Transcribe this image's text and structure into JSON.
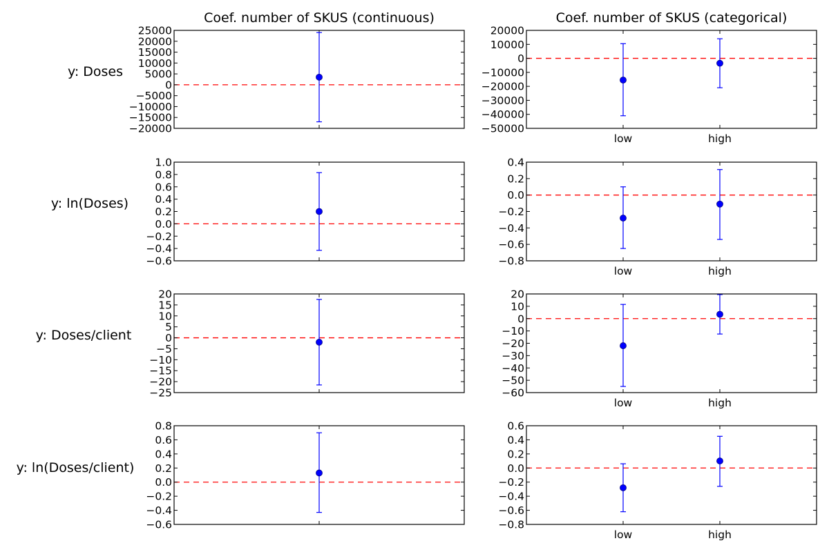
{
  "figure": {
    "column_titles": [
      "Coef. number of SKUS (continuous)",
      "Coef. number of SKUS (categorical)"
    ],
    "row_labels": [
      "y: Doses",
      "y: ln(Doses)",
      "y: Doses/client",
      "y: ln(Doses/client)"
    ],
    "colors": {
      "point": "#0000ff",
      "errorbar": "#0000ff",
      "reference_line": "#ff0000"
    }
  },
  "chart_data": [
    {
      "type": "errorbar",
      "title": "Coef. number of SKUS (continuous)",
      "ylabel": "y: Doses",
      "ylim": [
        -20000,
        25000
      ],
      "yticks": [
        -20000,
        -15000,
        -10000,
        -5000,
        0,
        5000,
        10000,
        15000,
        20000,
        25000
      ],
      "xticks": [],
      "reference_line": 0,
      "points": [
        {
          "x": "",
          "y": 3500,
          "lower": -17000,
          "upper": 24000
        }
      ]
    },
    {
      "type": "errorbar",
      "title": "Coef. number of SKUS (categorical)",
      "ylabel": "y: Doses",
      "ylim": [
        -50000,
        20000
      ],
      "yticks": [
        -50000,
        -40000,
        -30000,
        -20000,
        -10000,
        0,
        10000,
        20000
      ],
      "xticks": [
        "low",
        "high"
      ],
      "reference_line": 0,
      "points": [
        {
          "x": "low",
          "y": -15500,
          "lower": -41000,
          "upper": 10500
        },
        {
          "x": "high",
          "y": -3500,
          "lower": -21000,
          "upper": 14000
        }
      ]
    },
    {
      "type": "errorbar",
      "title": "Coef. number of SKUS (continuous)",
      "ylabel": "y: ln(Doses)",
      "ylim": [
        -0.6,
        1.0
      ],
      "yticks": [
        -0.6,
        -0.4,
        -0.2,
        0.0,
        0.2,
        0.4,
        0.6,
        0.8,
        1.0
      ],
      "xticks": [],
      "reference_line": 0,
      "points": [
        {
          "x": "",
          "y": 0.2,
          "lower": -0.43,
          "upper": 0.83
        }
      ]
    },
    {
      "type": "errorbar",
      "title": "Coef. number of SKUS (categorical)",
      "ylabel": "y: ln(Doses)",
      "ylim": [
        -0.8,
        0.4
      ],
      "yticks": [
        -0.8,
        -0.6,
        -0.4,
        -0.2,
        0.0,
        0.2,
        0.4
      ],
      "xticks": [
        "low",
        "high"
      ],
      "reference_line": 0,
      "points": [
        {
          "x": "low",
          "y": -0.28,
          "lower": -0.65,
          "upper": 0.1
        },
        {
          "x": "high",
          "y": -0.11,
          "lower": -0.54,
          "upper": 0.31
        }
      ]
    },
    {
      "type": "errorbar",
      "title": "Coef. number of SKUS (continuous)",
      "ylabel": "y: Doses/client",
      "ylim": [
        -25,
        20
      ],
      "yticks": [
        -25,
        -20,
        -15,
        -10,
        -5,
        0,
        5,
        10,
        15,
        20
      ],
      "xticks": [],
      "reference_line": 0,
      "points": [
        {
          "x": "",
          "y": -2,
          "lower": -21.5,
          "upper": 17.5
        }
      ]
    },
    {
      "type": "errorbar",
      "title": "Coef. number of SKUS (categorical)",
      "ylabel": "y: Doses/client",
      "ylim": [
        -60,
        20
      ],
      "yticks": [
        -60,
        -50,
        -40,
        -30,
        -20,
        -10,
        0,
        10,
        20
      ],
      "xticks": [
        "low",
        "high"
      ],
      "reference_line": 0,
      "points": [
        {
          "x": "low",
          "y": -22,
          "lower": -55,
          "upper": 11.5
        },
        {
          "x": "high",
          "y": 3.5,
          "lower": -12.5,
          "upper": 19.5
        }
      ]
    },
    {
      "type": "errorbar",
      "title": "Coef. number of SKUS (continuous)",
      "ylabel": "y: ln(Doses/client)",
      "ylim": [
        -0.6,
        0.8
      ],
      "yticks": [
        -0.6,
        -0.4,
        -0.2,
        0.0,
        0.2,
        0.4,
        0.6,
        0.8
      ],
      "xticks": [],
      "reference_line": 0,
      "points": [
        {
          "x": "",
          "y": 0.13,
          "lower": -0.43,
          "upper": 0.7
        }
      ]
    },
    {
      "type": "errorbar",
      "title": "Coef. number of SKUS (categorical)",
      "ylabel": "y: ln(Doses/client)",
      "ylim": [
        -0.8,
        0.6
      ],
      "yticks": [
        -0.8,
        -0.6,
        -0.4,
        -0.2,
        0.0,
        0.2,
        0.4,
        0.6
      ],
      "xticks": [
        "low",
        "high"
      ],
      "reference_line": 0,
      "points": [
        {
          "x": "low",
          "y": -0.28,
          "lower": -0.62,
          "upper": 0.06
        },
        {
          "x": "high",
          "y": 0.1,
          "lower": -0.26,
          "upper": 0.45
        }
      ]
    }
  ]
}
